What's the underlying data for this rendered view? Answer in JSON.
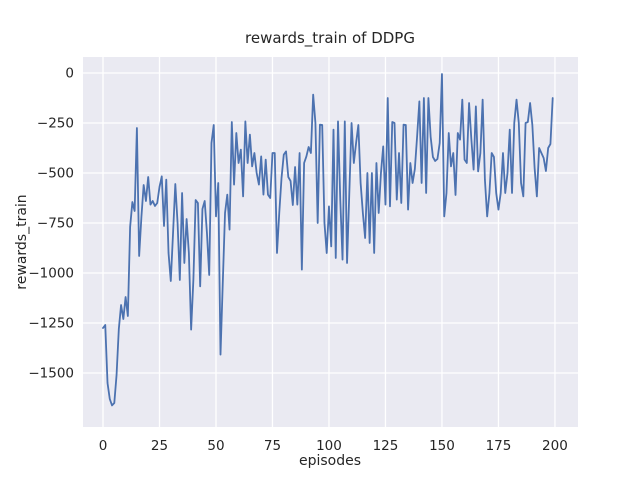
{
  "figure": {
    "title": "rewards_train of DDPG",
    "xlabel": "episodes",
    "ylabel": "rewards_train",
    "background_color": "#ffffff",
    "plot_background_color": "#eaeaf2",
    "grid_color": "#ffffff",
    "line_color": "#4c72b0",
    "text_color": "#262626"
  },
  "chart_data": {
    "type": "line",
    "title": "rewards_train of DDPG",
    "xlabel": "episodes",
    "ylabel": "rewards_train",
    "legend": false,
    "grid": true,
    "x_start": 0,
    "x_step": 1,
    "xticks": [
      0,
      25,
      50,
      75,
      100,
      125,
      150,
      175,
      200
    ],
    "yticks": [
      0,
      -250,
      -500,
      -750,
      -1000,
      -1250,
      -1500
    ],
    "xlim": [
      -8.85,
      210.2
    ],
    "ylim": [
      -1770,
      80
    ],
    "values": [
      -1275,
      -1260,
      -1550,
      -1630,
      -1662,
      -1650,
      -1510,
      -1280,
      -1160,
      -1230,
      -1120,
      -1215,
      -770,
      -645,
      -690,
      -275,
      -915,
      -720,
      -560,
      -640,
      -520,
      -658,
      -640,
      -665,
      -650,
      -570,
      -517,
      -765,
      -533,
      -900,
      -1040,
      -800,
      -555,
      -750,
      -1035,
      -600,
      -950,
      -730,
      -900,
      -1283,
      -1033,
      -635,
      -650,
      -1067,
      -680,
      -640,
      -800,
      -1010,
      -350,
      -260,
      -717,
      -550,
      -1408,
      -1050,
      -700,
      -608,
      -783,
      -245,
      -558,
      -300,
      -450,
      -383,
      -617,
      -242,
      -450,
      -308,
      -467,
      -400,
      -500,
      -558,
      -417,
      -608,
      -433,
      -608,
      -625,
      -400,
      -400,
      -900,
      -700,
      -525,
      -408,
      -392,
      -520,
      -540,
      -660,
      -470,
      -658,
      -400,
      -983,
      -450,
      -417,
      -370,
      -400,
      -108,
      -250,
      -750,
      -258,
      -260,
      -750,
      -900,
      -667,
      -867,
      -283,
      -925,
      -242,
      -633,
      -933,
      -242,
      -950,
      -600,
      -250,
      -450,
      -350,
      -260,
      -550,
      -700,
      -825,
      -500,
      -850,
      -500,
      -900,
      -450,
      -700,
      -500,
      -367,
      -658,
      -125,
      -667,
      -245,
      -250,
      -633,
      -400,
      -650,
      -258,
      -260,
      -683,
      -450,
      -550,
      -480,
      -317,
      -142,
      -550,
      -125,
      -600,
      -125,
      -320,
      -420,
      -440,
      -430,
      -350,
      -5,
      -717,
      -600,
      -300,
      -467,
      -400,
      -610,
      -300,
      -333,
      -133,
      -433,
      -450,
      -150,
      -330,
      -483,
      -167,
      -492,
      -400,
      -133,
      -533,
      -717,
      -600,
      -400,
      -420,
      -600,
      -683,
      -600,
      -400,
      -600,
      -500,
      -283,
      -600,
      -250,
      -133,
      -250,
      -550,
      -617,
      -250,
      -245,
      -150,
      -260,
      -475,
      -617,
      -375,
      -400,
      -425,
      -490,
      -375,
      -355,
      -125
    ]
  }
}
